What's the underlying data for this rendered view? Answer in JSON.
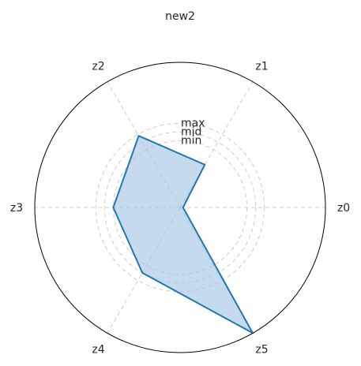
{
  "chart_data": {
    "type": "radar",
    "title": "new2",
    "axes": [
      "z0",
      "z1",
      "z2",
      "z3",
      "z4",
      "z5"
    ],
    "range": [
      0,
      1
    ],
    "grid": true,
    "rings": [
      {
        "label": "min",
        "value": 0.46
      },
      {
        "label": "mid",
        "value": 0.52
      },
      {
        "label": "max",
        "value": 0.58
      }
    ],
    "series": [
      {
        "values": [
          0.02,
          0.34,
          0.57,
          0.46,
          0.52,
          1.0
        ]
      }
    ],
    "colors": {
      "line": "#1f77b4",
      "fill": "#a6c8e4",
      "grid": "#cccccc",
      "frame": "#000000"
    }
  }
}
